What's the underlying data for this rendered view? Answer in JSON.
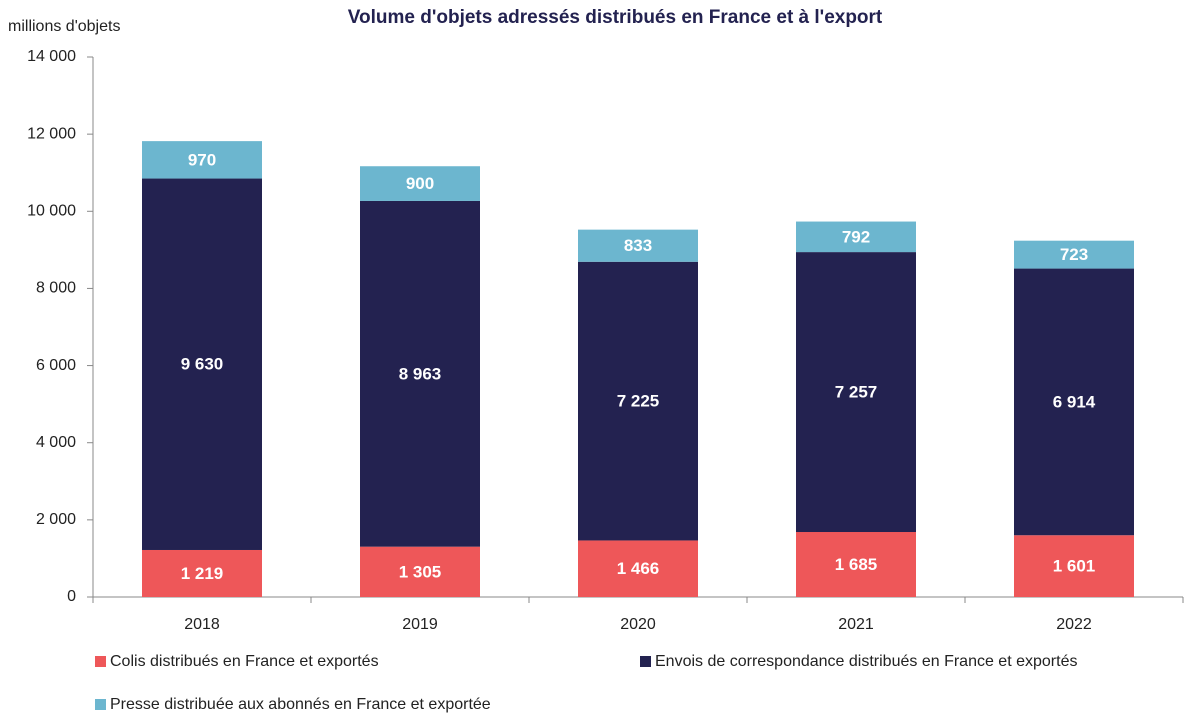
{
  "chart_data": {
    "type": "stacked_bar",
    "title": "Volume d'objets adressés distribués en France et à l'export",
    "y_label": "millions d'objets",
    "categories": [
      "2018",
      "2019",
      "2020",
      "2021",
      "2022"
    ],
    "series": [
      {
        "name": "Colis distribués en France et exportés",
        "color": "#ee5759",
        "values": [
          1219,
          1305,
          1466,
          1685,
          1601
        ],
        "value_labels": [
          "1 219",
          "1 305",
          "1 466",
          "1 685",
          "1 601"
        ]
      },
      {
        "name": "Envois de correspondance distribués en France et exportés",
        "color": "#232250",
        "values": [
          9630,
          8963,
          7225,
          7257,
          6914
        ],
        "value_labels": [
          "9 630",
          "8 963",
          "7 225",
          "7 257",
          "6 914"
        ]
      },
      {
        "name": "Presse distribuée aux abonnés en France et exportée",
        "color": "#6cb6cf",
        "values": [
          970,
          900,
          833,
          792,
          723
        ]
      }
    ],
    "ylim": [
      0,
      14000
    ],
    "yticks": [
      0,
      {
        "value": 2000,
        "label": "2 000"
      },
      {
        "value": 4000,
        "label": "4 000"
      },
      {
        "value": 6000,
        "label": "6 000"
      },
      {
        "value": 8000,
        "label": "8 000"
      },
      {
        "value": 10000,
        "label": "10 000"
      },
      {
        "value": 12000,
        "label": "12 000"
      },
      {
        "value": 14000,
        "label": "14 000"
      }
    ],
    "legend": "bottom"
  }
}
